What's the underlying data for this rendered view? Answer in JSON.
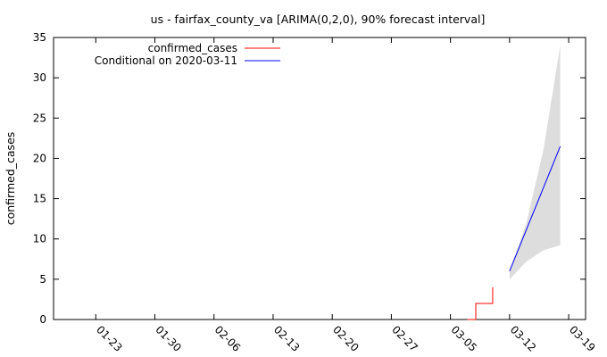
{
  "chart_data": {
    "type": "line",
    "title": "us - fairfax_county_va [ARIMA(0,2,0), 90% forecast interval]",
    "xlabel": "",
    "ylabel": "confirmed_cases",
    "x_axis_type": "date",
    "x_tick_labels": [
      "01-23",
      "01-30",
      "02-06",
      "02-13",
      "02-20",
      "02-27",
      "03-05",
      "03-12",
      "03-19"
    ],
    "x_tick_dates": [
      "2020-01-23",
      "2020-01-30",
      "2020-02-06",
      "2020-02-13",
      "2020-02-20",
      "2020-02-27",
      "2020-03-05",
      "2020-03-12",
      "2020-03-19"
    ],
    "xlim": [
      "2020-01-18",
      "2020-03-21"
    ],
    "ylim": [
      0,
      35
    ],
    "y_ticks": [
      0,
      5,
      10,
      15,
      20,
      25,
      30,
      35
    ],
    "grid": false,
    "legend_position": "top-left",
    "series": [
      {
        "name": "confirmed_cases",
        "color": "#ff0000",
        "style": "step",
        "points": [
          {
            "x": "2020-03-07",
            "y": 0
          },
          {
            "x": "2020-03-08",
            "y": 1
          },
          {
            "x": "2020-03-08",
            "y": 2
          },
          {
            "x": "2020-03-09",
            "y": 2
          },
          {
            "x": "2020-03-10",
            "y": 4
          }
        ]
      },
      {
        "name": "Conditional on 2020-03-11",
        "color": "#0000ff",
        "style": "line",
        "points": [
          {
            "x": "2020-03-12",
            "y": 6
          },
          {
            "x": "2020-03-18",
            "y": 21.5
          }
        ]
      }
    ],
    "forecast_interval": {
      "level": "90%",
      "color": "#dddddd",
      "upper": [
        {
          "x": "2020-03-12",
          "y": 6
        },
        {
          "x": "2020-03-14",
          "y": 12
        },
        {
          "x": "2020-03-16",
          "y": 21
        },
        {
          "x": "2020-03-18",
          "y": 34
        }
      ],
      "lower": [
        {
          "x": "2020-03-12",
          "y": 5
        },
        {
          "x": "2020-03-14",
          "y": 7.2
        },
        {
          "x": "2020-03-16",
          "y": 8.6
        },
        {
          "x": "2020-03-18",
          "y": 9.2
        }
      ]
    }
  }
}
